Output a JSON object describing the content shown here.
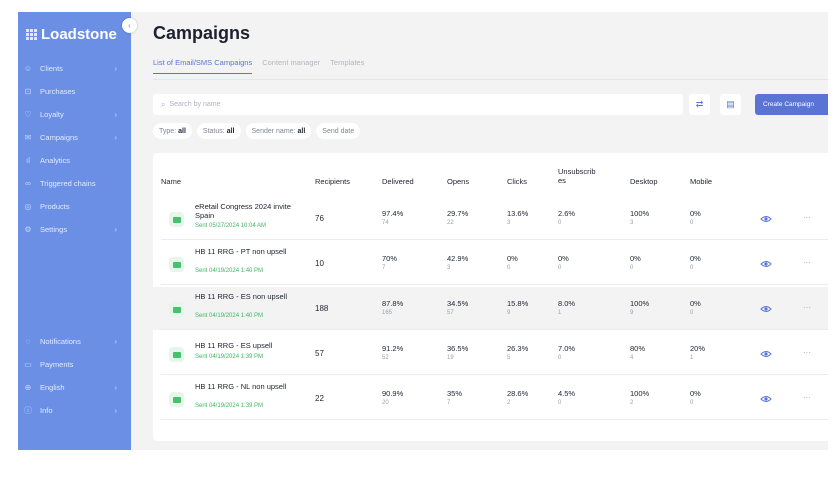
{
  "app": {
    "logo_text": "Loadstone",
    "collapse_glyph": "‹"
  },
  "sidebar": {
    "items": [
      {
        "label": "Clients",
        "icon": "users-icon",
        "glyph": "☺",
        "chevron": true
      },
      {
        "label": "Purchases",
        "icon": "cart-icon",
        "glyph": "⊡",
        "chevron": false
      },
      {
        "label": "Loyalty",
        "icon": "heart-icon",
        "glyph": "♡",
        "chevron": true
      },
      {
        "label": "Campaigns",
        "icon": "mail-icon",
        "glyph": "✉",
        "chevron": true
      },
      {
        "label": "Analytics",
        "icon": "chart-icon",
        "glyph": "ıl",
        "chevron": false
      },
      {
        "label": "Triggered chains",
        "icon": "link-icon",
        "glyph": "∞",
        "chevron": false
      },
      {
        "label": "Products",
        "icon": "box-icon",
        "glyph": "◎",
        "chevron": false
      },
      {
        "label": "Settings",
        "icon": "gear-icon",
        "glyph": "⚙",
        "chevron": true
      }
    ],
    "bottom_items": [
      {
        "label": "Notifications",
        "icon": "bell-icon",
        "glyph": "◌",
        "chevron": true
      },
      {
        "label": "Payments",
        "icon": "card-icon",
        "glyph": "▭",
        "chevron": false
      },
      {
        "label": "English",
        "icon": "globe-icon",
        "glyph": "⊕",
        "chevron": true
      },
      {
        "label": "Info",
        "icon": "info-icon",
        "glyph": "ⓘ",
        "chevron": true
      }
    ],
    "chevron_glyph": "›"
  },
  "page": {
    "title": "Campaigns",
    "tabs": [
      {
        "label": "List of Email/SMS Campaigns",
        "active": true
      },
      {
        "label": "Content manager",
        "active": false
      },
      {
        "label": "Templates",
        "active": false
      }
    ]
  },
  "toolbar": {
    "search_placeholder": "Search by name",
    "search_glyph": "⌕",
    "refresh_glyph": "⇄",
    "calendar_glyph": "▤",
    "create_label": "Create Campaign"
  },
  "filters": [
    {
      "key": "Type:",
      "value": "all"
    },
    {
      "key": "Status:",
      "value": "all"
    },
    {
      "key": "Sender name:",
      "value": "all"
    },
    {
      "key": "Send date",
      "value": ""
    }
  ],
  "table": {
    "headers": {
      "name": "Name",
      "recipients": "Recipients",
      "delivered": "Delivered",
      "opens": "Opens",
      "clicks": "Clicks",
      "unsubscribes_line1": "Unsubscrib",
      "unsubscribes_line2": "es",
      "desktop": "Desktop",
      "mobile": "Mobile"
    },
    "more_glyph": "···",
    "rows": [
      {
        "name": "eRetail Congress 2024 invite Spain",
        "sent": "Sent 05/27/2024 10:04 AM",
        "recipients": "76",
        "delivered": "97.4%",
        "delivered_n": "74",
        "opens": "29.7%",
        "opens_n": "22",
        "clicks": "13.6%",
        "clicks_n": "3",
        "unsub": "2.6%",
        "unsub_n": "0",
        "desktop": "100%",
        "desktop_n": "3",
        "mobile": "0%",
        "mobile_n": "0",
        "highlighted": false
      },
      {
        "name": "HB 11 RRG - PT non upsell",
        "sent": "Sent 04/19/2024 1:40 PM",
        "recipients": "10",
        "delivered": "70%",
        "delivered_n": "7",
        "opens": "42.9%",
        "opens_n": "3",
        "clicks": "0%",
        "clicks_n": "0",
        "unsub": "0%",
        "unsub_n": "0",
        "desktop": "0%",
        "desktop_n": "0",
        "mobile": "0%",
        "mobile_n": "0",
        "highlighted": false
      },
      {
        "name": "HB 11 RRG - ES non upsell",
        "sent": "Sent 04/19/2024 1:40 PM",
        "recipients": "188",
        "delivered": "87.8%",
        "delivered_n": "165",
        "opens": "34.5%",
        "opens_n": "57",
        "clicks": "15.8%",
        "clicks_n": "9",
        "unsub": "8.0%",
        "unsub_n": "1",
        "desktop": "100%",
        "desktop_n": "9",
        "mobile": "0%",
        "mobile_n": "0",
        "highlighted": true
      },
      {
        "name": "HB 11 RRG - ES upsell",
        "sent": "Sent 04/19/2024 1:39 PM",
        "recipients": "57",
        "delivered": "91.2%",
        "delivered_n": "52",
        "opens": "36.5%",
        "opens_n": "19",
        "clicks": "26.3%",
        "clicks_n": "5",
        "unsub": "7.0%",
        "unsub_n": "0",
        "desktop": "80%",
        "desktop_n": "4",
        "mobile": "20%",
        "mobile_n": "1",
        "highlighted": false
      },
      {
        "name": "HB 11 RRG - NL non upsell",
        "sent": "Sent 04/19/2024 1:39 PM",
        "recipients": "22",
        "delivered": "90.9%",
        "delivered_n": "20",
        "opens": "35%",
        "opens_n": "7",
        "clicks": "28.6%",
        "clicks_n": "2",
        "unsub": "4.5%",
        "unsub_n": "0",
        "desktop": "100%",
        "desktop_n": "2",
        "mobile": "0%",
        "mobile_n": "0",
        "highlighted": false
      }
    ]
  },
  "colors": {
    "sidebar": "#6a8fe5",
    "accent": "#5a74d6",
    "sent_green": "#3fb463",
    "background": "#f3f3f3"
  }
}
